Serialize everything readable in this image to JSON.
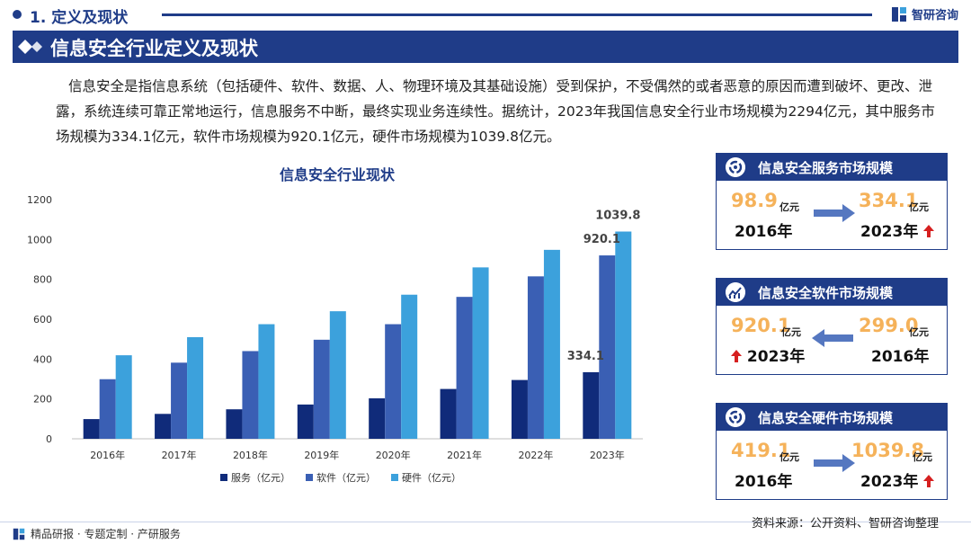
{
  "header": {
    "section_label": "1. 定义及现状",
    "brand_name": "智研咨询",
    "banner_title": "信息安全行业定义及现状"
  },
  "intro_text": "信息安全是指信息系统（包括硬件、软件、数据、人、物理环境及其基础设施）受到保护，不受偶然的或者恶意的原因而遭到破坏、更改、泄露，系统连续可靠正常地运行，信息服务不中断，最终实现业务连续性。据统计，2023年我国信息安全行业市场规模为2294亿元，其中服务市场规模为334.1亿元，软件市场规模为920.1亿元，硬件市场规模为1039.8亿元。",
  "chart_data": {
    "type": "bar",
    "title": "信息安全行业现状",
    "categories": [
      "2016年",
      "2017年",
      "2018年",
      "2019年",
      "2020年",
      "2021年",
      "2022年",
      "2023年"
    ],
    "series": [
      {
        "name": "服务（亿元）",
        "color": "#102b7a",
        "values": [
          98.9,
          125,
          148,
          172,
          203,
          250,
          295,
          334.1
        ]
      },
      {
        "name": "软件（亿元）",
        "color": "#3a5fb4",
        "values": [
          299.0,
          382,
          440,
          497,
          575,
          712,
          815,
          920.1
        ]
      },
      {
        "name": "硬件（亿元）",
        "color": "#3ca1dc",
        "values": [
          419.1,
          510,
          575,
          640,
          723,
          860,
          948,
          1039.8
        ]
      }
    ],
    "data_labels": [
      {
        "series": 0,
        "index": 7,
        "text": "334.1"
      },
      {
        "series": 1,
        "index": 7,
        "text": "920.1"
      },
      {
        "series": 2,
        "index": 7,
        "text": "1039.8"
      }
    ],
    "ylim": [
      0,
      1200
    ],
    "yticks": [
      0,
      200,
      400,
      600,
      800,
      1000,
      1200
    ],
    "legend": "bottom",
    "grid": false
  },
  "cards": [
    {
      "title": "信息安全服务市场规模",
      "left_value": "98.9",
      "left_unit": "亿元",
      "left_year": "2016年",
      "right_value": "334.1",
      "right_unit": "亿元",
      "right_year": "2023年"
    },
    {
      "title": "信息安全软件市场规模",
      "left_value": "920.1",
      "left_unit": "亿元",
      "left_year": "2023年",
      "right_value": "299.0",
      "right_unit": "亿元",
      "right_year": "2016年"
    },
    {
      "title": "信息安全硬件市场规模",
      "left_value": "419.1",
      "left_unit": "亿元",
      "left_year": "2016年",
      "right_value": "1039.8",
      "right_unit": "亿元",
      "right_year": "2023年"
    }
  ],
  "colors": {
    "primary": "#1f3c88",
    "accent_value": "#f5b25a",
    "up_arrow": "#d62020",
    "arrow": "#5577c0"
  },
  "footer": {
    "left_text": "精品研报 · 专题定制 · 产研服务",
    "source_text": "资料来源：公开资料、智研咨询整理"
  }
}
